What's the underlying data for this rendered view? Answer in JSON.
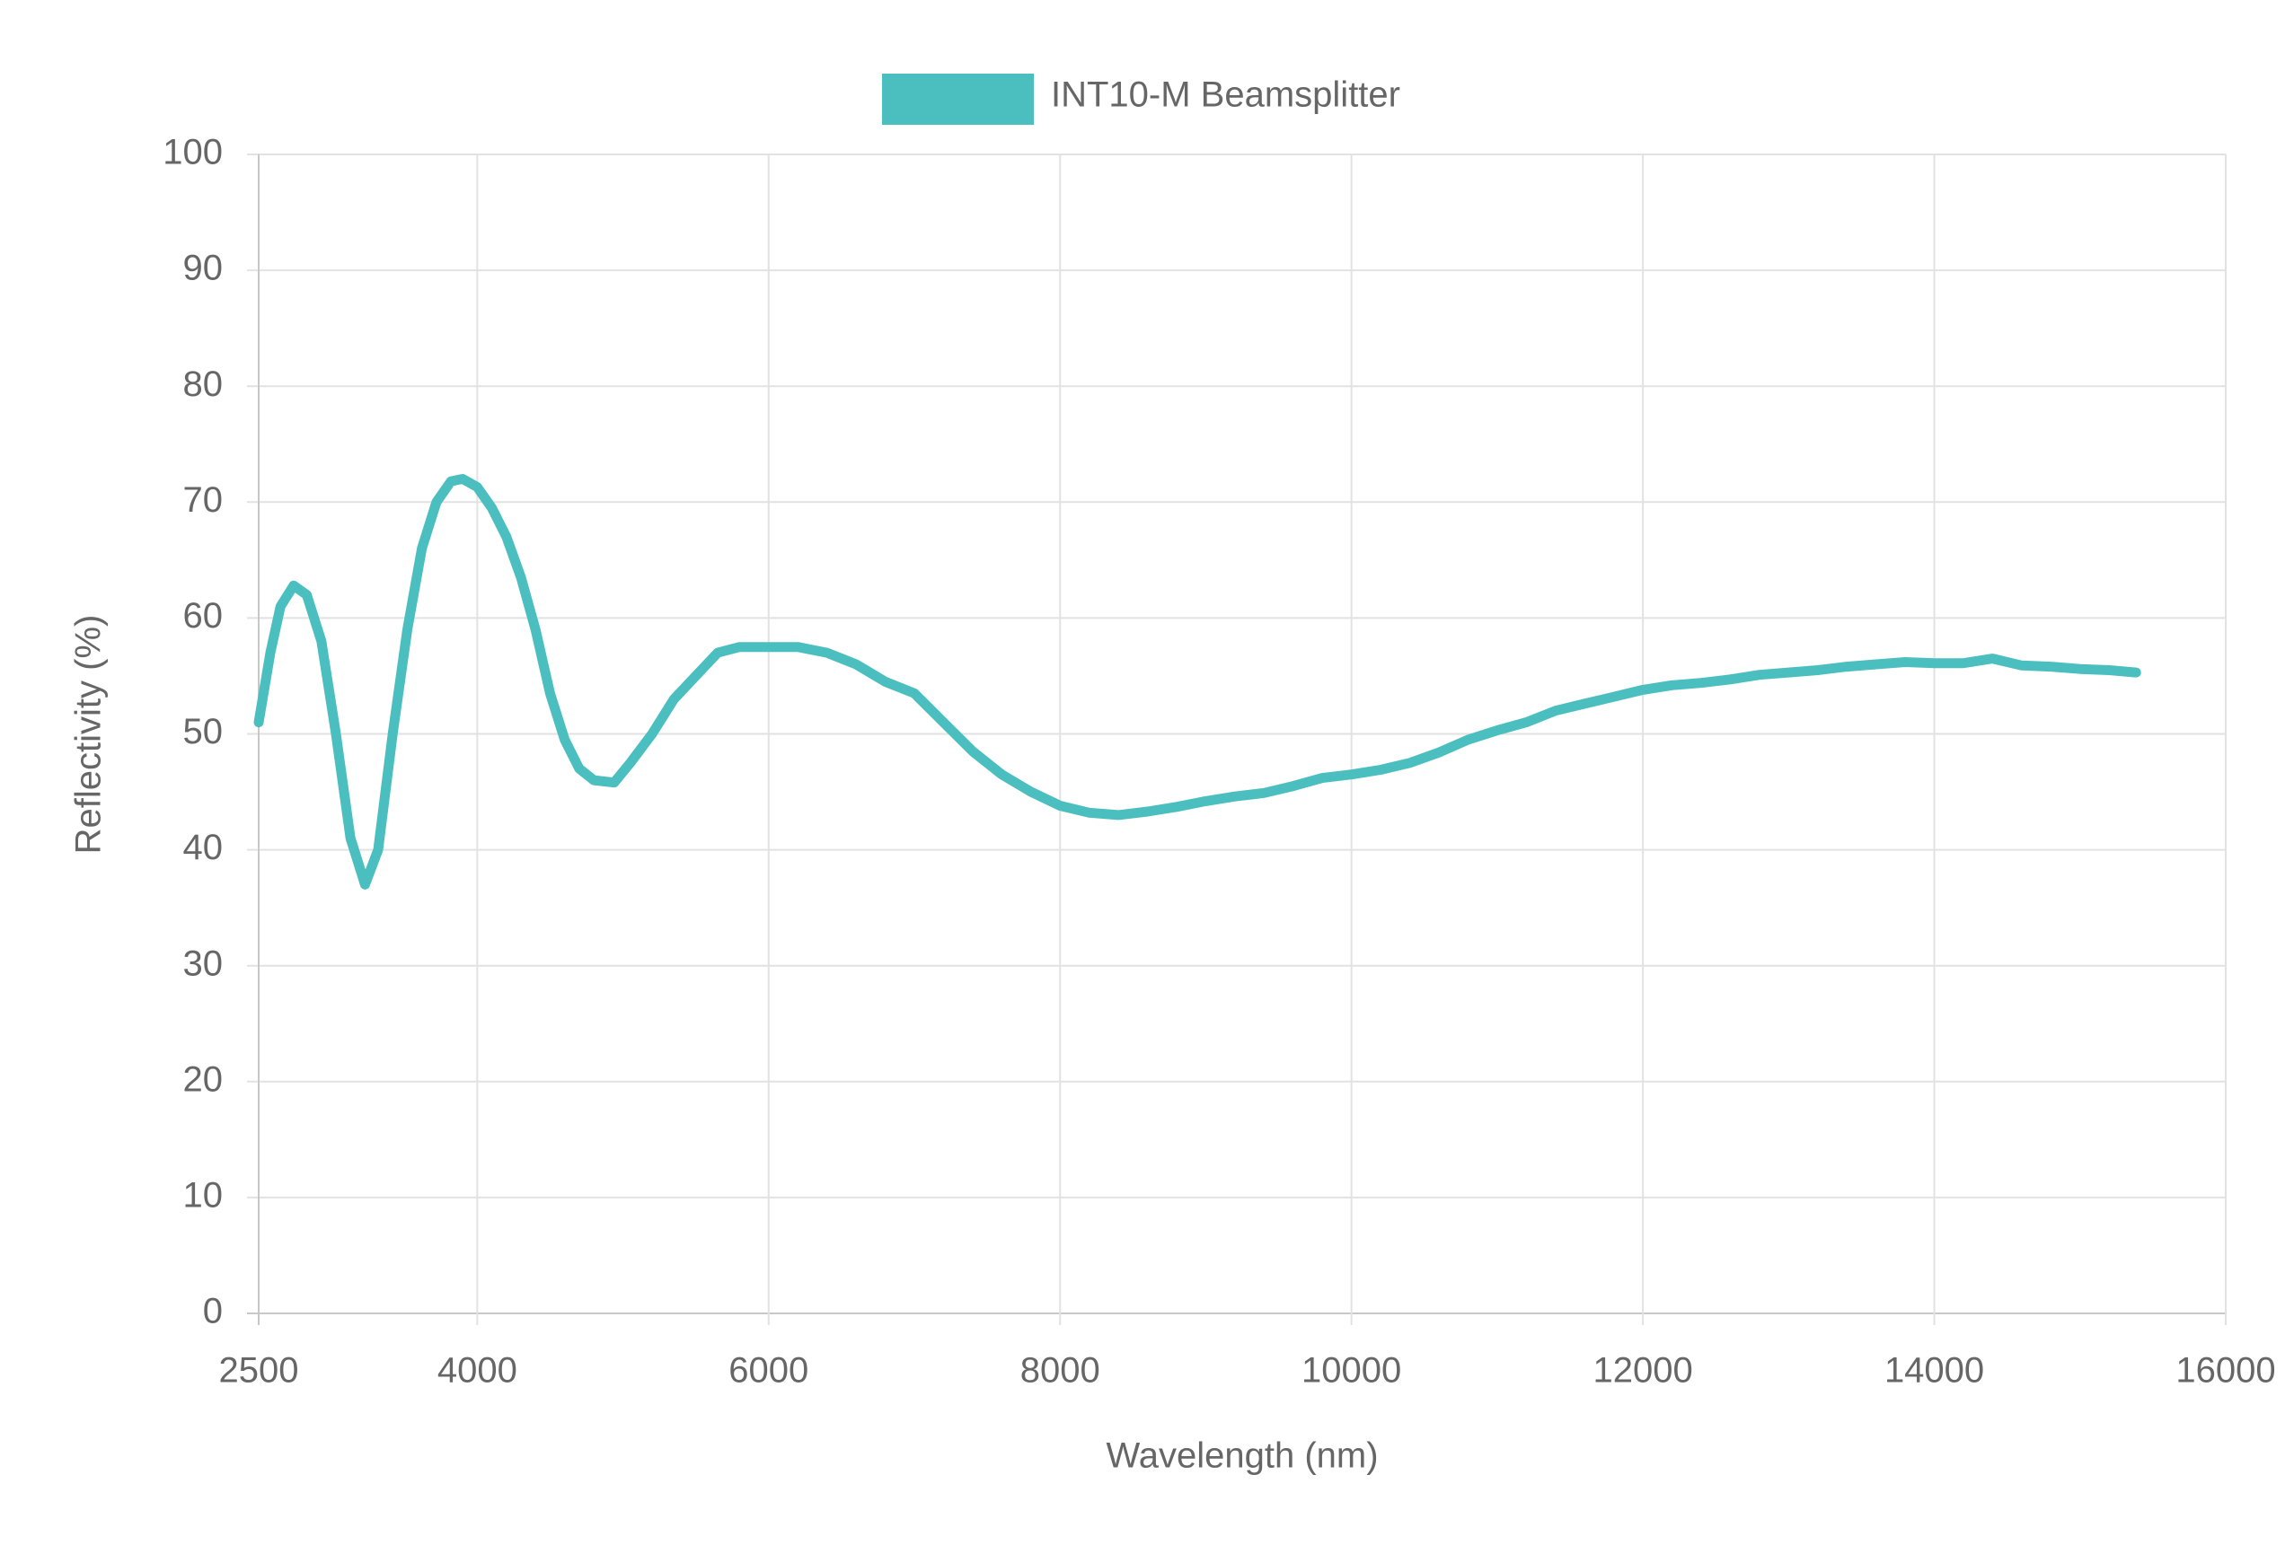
{
  "chart_data": {
    "type": "line",
    "x_label": "Wavelength (nm)",
    "y_label": "Reflectivity (%)",
    "legend": "top",
    "grid": true,
    "xlim": [
      2500,
      16000
    ],
    "xticks": [
      2500,
      4000,
      6000,
      8000,
      10000,
      12000,
      14000,
      16000
    ],
    "ylim": [
      0,
      100
    ],
    "yticks": [
      0,
      10,
      20,
      30,
      40,
      50,
      60,
      70,
      80,
      90,
      100
    ],
    "x": [
      2500,
      2580,
      2650,
      2740,
      2830,
      2930,
      3030,
      3130,
      3230,
      3320,
      3420,
      3520,
      3620,
      3720,
      3820,
      3900,
      4000,
      4100,
      4200,
      4300,
      4400,
      4500,
      4600,
      4700,
      4800,
      4940,
      5050,
      5200,
      5350,
      5500,
      5650,
      5800,
      6000,
      6200,
      6400,
      6600,
      6800,
      7000,
      7200,
      7400,
      7600,
      7800,
      8000,
      8200,
      8400,
      8600,
      8800,
      9000,
      9200,
      9400,
      9600,
      9800,
      10000,
      10200,
      10400,
      10600,
      10800,
      11000,
      11200,
      11400,
      11600,
      11800,
      12000,
      12200,
      12400,
      12600,
      12800,
      13000,
      13200,
      13400,
      13600,
      13800,
      14000,
      14200,
      14400,
      14600,
      14800,
      15000,
      15200,
      15385
    ],
    "series": [
      {
        "name": "INT10-M Beamsplitter",
        "color": "#4bbfbf",
        "values": [
          51,
          57,
          61,
          62.8,
          62,
          58,
          50,
          41,
          37,
          40,
          50,
          59,
          66,
          70,
          71.8,
          72,
          71.3,
          69.5,
          67,
          63.5,
          59,
          53.5,
          49.5,
          47,
          46,
          45.8,
          47.5,
          50,
          53,
          55,
          57,
          57.5,
          57.5,
          57.5,
          57,
          56,
          54.5,
          53.5,
          51,
          48.5,
          46.5,
          45,
          43.8,
          43.2,
          43,
          43.3,
          43.7,
          44.2,
          44.6,
          44.9,
          45.5,
          46.2,
          46.5,
          46.9,
          47.5,
          48.4,
          49.5,
          50.3,
          51,
          52,
          52.6,
          53.2,
          53.8,
          54.2,
          54.4,
          54.7,
          55.1,
          55.3,
          55.5,
          55.8,
          56,
          56.2,
          56.1,
          56.1,
          56.5,
          55.9,
          55.8,
          55.6,
          55.5,
          55.3
        ]
      }
    ]
  }
}
